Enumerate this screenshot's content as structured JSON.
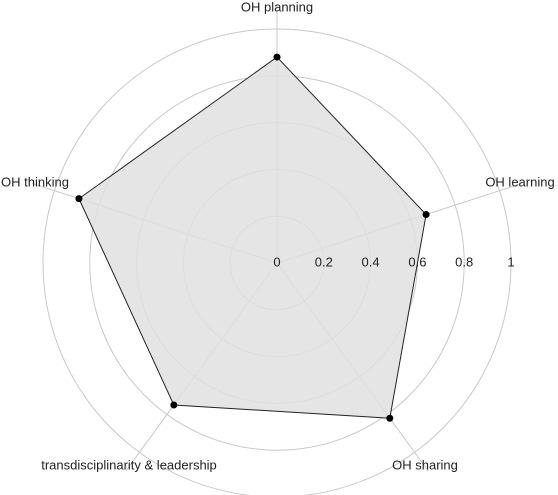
{
  "chart_data": {
    "type": "radar",
    "categories": [
      "OH planning",
      "OH learning",
      "OH sharing",
      "transdisciplinarity & leadership",
      "OH thinking"
    ],
    "values": [
      0.88,
      0.67,
      0.82,
      0.75,
      0.89
    ],
    "ylim": [
      0,
      1
    ],
    "yticks": [
      0,
      0.2,
      0.4,
      0.6,
      0.8,
      1
    ],
    "color": "#e0e0e0",
    "line_color": "#222222",
    "grid": true
  }
}
